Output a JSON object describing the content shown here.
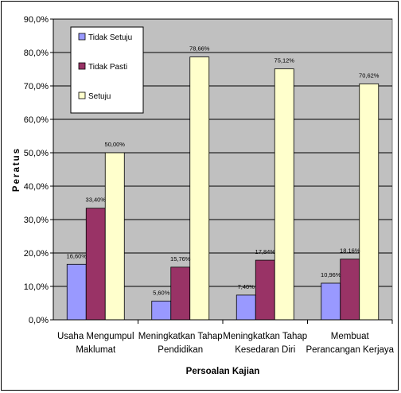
{
  "chart_data": {
    "type": "bar",
    "categories": [
      [
        "Usaha Mengumpul",
        "Maklumat"
      ],
      [
        "Meningkatkan Tahap",
        "Pendidikan"
      ],
      [
        "Meningkatkan Tahap",
        "Kesedaran Diri"
      ],
      [
        "Membuat",
        "Perancangan Kerjaya"
      ]
    ],
    "series": [
      {
        "name": "Tidak Setuju",
        "color": "#9999ff",
        "values": [
          16.6,
          5.6,
          7.4,
          10.96
        ],
        "labels": [
          "16,60%",
          "5,60%",
          "7,40%",
          "10,96%"
        ]
      },
      {
        "name": "Tidak Pasti",
        "color": "#993366",
        "values": [
          33.4,
          15.76,
          17.84,
          18.16
        ],
        "labels": [
          "33,40%",
          "15,76%",
          "17,84%",
          "18,16%"
        ]
      },
      {
        "name": "Setuju",
        "color": "#ffffcc",
        "values": [
          50.0,
          78.66,
          75.12,
          70.62
        ],
        "labels": [
          "50,00%",
          "78,66%",
          "75,12%",
          "70,62%"
        ]
      }
    ],
    "xlabel": "Persoalan Kajian",
    "ylabel": "Peratus",
    "ylim": [
      0,
      90
    ],
    "yticks": [
      "0,0%",
      "10,0%",
      "20,0%",
      "30,0%",
      "40,0%",
      "50,0%",
      "60,0%",
      "70,0%",
      "80,0%",
      "90,0%"
    ],
    "plot_background": "#c0c0c0",
    "grid": true,
    "legend_position": "top-left inside plot"
  }
}
